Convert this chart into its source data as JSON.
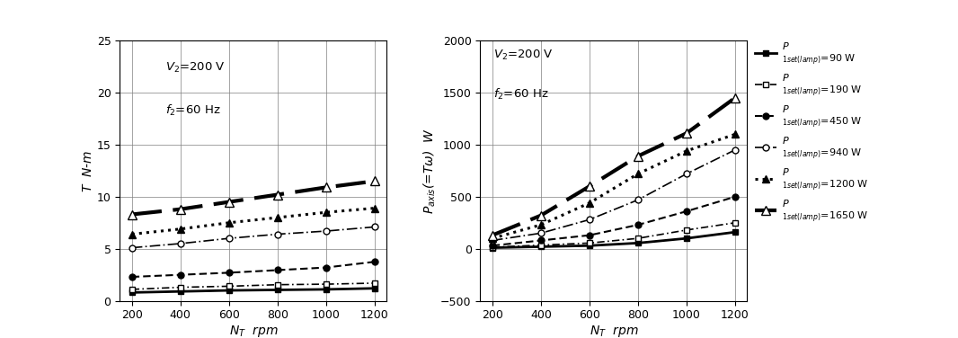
{
  "x": [
    200,
    400,
    600,
    800,
    1000,
    1200
  ],
  "torque": {
    "90W": [
      0.8,
      0.9,
      1.0,
      1.05,
      1.1,
      1.2
    ],
    "190W": [
      1.1,
      1.3,
      1.4,
      1.55,
      1.6,
      1.7
    ],
    "450W": [
      2.3,
      2.5,
      2.7,
      2.95,
      3.2,
      3.75
    ],
    "940W": [
      5.1,
      5.5,
      6.0,
      6.4,
      6.7,
      7.1
    ],
    "1200W": [
      6.4,
      6.9,
      7.5,
      8.0,
      8.5,
      8.9
    ],
    "1650W": [
      8.3,
      8.8,
      9.5,
      10.2,
      10.9,
      11.5
    ]
  },
  "power": {
    "90W": [
      10,
      20,
      30,
      55,
      100,
      160
    ],
    "190W": [
      15,
      35,
      55,
      100,
      180,
      250
    ],
    "450W": [
      30,
      80,
      130,
      230,
      360,
      500
    ],
    "940W": [
      80,
      150,
      280,
      470,
      720,
      950
    ],
    "1200W": [
      100,
      230,
      440,
      720,
      940,
      1100
    ],
    "1650W": [
      130,
      320,
      600,
      890,
      1110,
      1450
    ]
  },
  "ylabel_left": "$T$  N-m",
  "ylabel_right": "$P_{axis}$(=$T\\omega$)  W",
  "xlabel": "$N_T$  rpm",
  "ylim_left": [
    0,
    25
  ],
  "ylim_right": [
    -500,
    2000
  ],
  "yticks_left": [
    0,
    5,
    10,
    15,
    20,
    25
  ],
  "yticks_right": [
    -500,
    0,
    500,
    1000,
    1500,
    2000
  ],
  "xticks": [
    200,
    400,
    600,
    800,
    1000,
    1200
  ],
  "legend_labels": [
    "=90 W",
    "=190 W",
    "=450 W",
    "=940 W",
    "=1200 W",
    "=1650 W"
  ]
}
